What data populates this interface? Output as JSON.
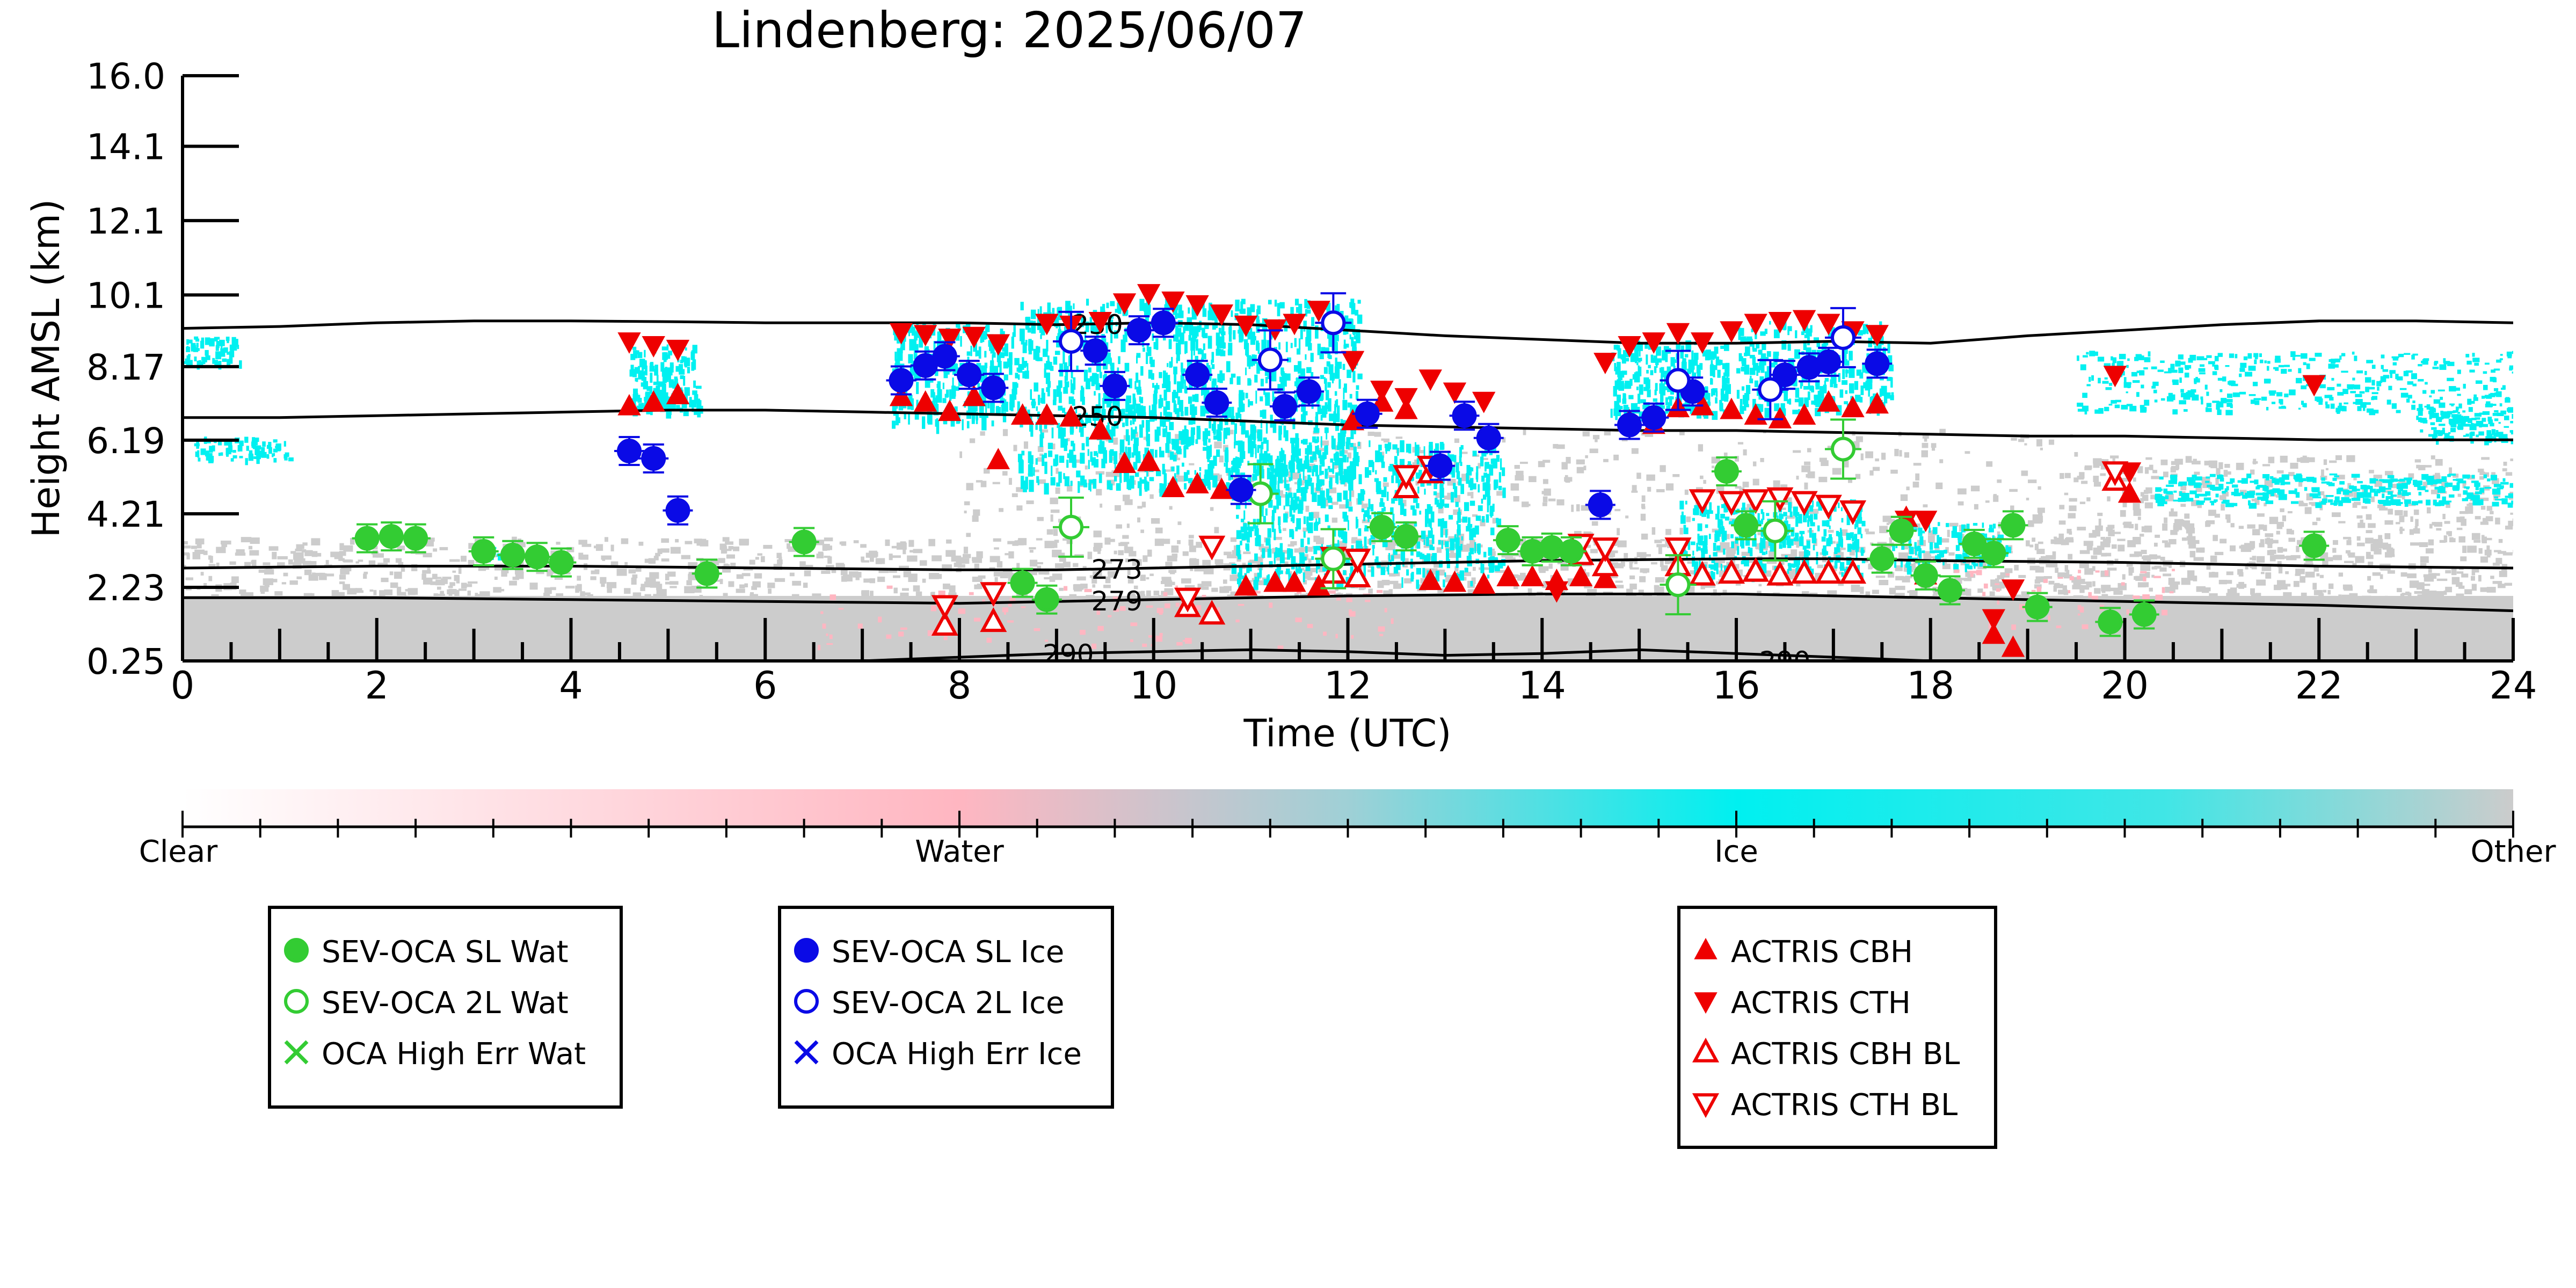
{
  "chart_data": {
    "type": "scatter",
    "title": "Lindenberg: 2025/06/07",
    "xlabel": "Time (UTC)",
    "ylabel": "Height AMSL (km)",
    "xlim": [
      0,
      24
    ],
    "ylim": [
      0.25,
      16.0
    ],
    "xticks": [
      "0",
      "2",
      "4",
      "6",
      "8",
      "10",
      "12",
      "14",
      "16",
      "18",
      "20",
      "22",
      "24"
    ],
    "yticks": [
      "0.25",
      "2.23",
      "4.21",
      "6.19",
      "8.17",
      "10.1",
      "12.1",
      "14.1",
      "16.0"
    ],
    "grid": false,
    "background": "cloud-type mask (Clear / Water / Ice / Other)",
    "colorbar": {
      "labels": [
        "Clear",
        "Water",
        "Ice",
        "Other"
      ],
      "colors": [
        "#ffffff",
        "#ffb6c1",
        "#00f0f0",
        "#cccccc"
      ]
    },
    "contours": [
      {
        "label": "230",
        "x": [
          0,
          1,
          2,
          3,
          4,
          5,
          6,
          7,
          8,
          9,
          10,
          11,
          12,
          13,
          14,
          15,
          16,
          17,
          18,
          19,
          20,
          21,
          22,
          23,
          24
        ],
        "y": [
          9.2,
          9.25,
          9.35,
          9.4,
          9.4,
          9.38,
          9.35,
          9.35,
          9.35,
          9.3,
          9.35,
          9.3,
          9.15,
          9.0,
          8.9,
          8.8,
          8.8,
          8.85,
          8.8,
          9.0,
          9.15,
          9.3,
          9.4,
          9.4,
          9.35
        ]
      },
      {
        "label": "250",
        "x": [
          0,
          1,
          2,
          3,
          4,
          5,
          6,
          7,
          8,
          9,
          10,
          11,
          12,
          13,
          14,
          15,
          16,
          17,
          18,
          19,
          20,
          21,
          22,
          23,
          24
        ],
        "y": [
          6.8,
          6.8,
          6.85,
          6.9,
          6.95,
          7.0,
          7.0,
          6.95,
          6.9,
          6.85,
          6.8,
          6.7,
          6.6,
          6.55,
          6.5,
          6.45,
          6.45,
          6.4,
          6.35,
          6.3,
          6.3,
          6.25,
          6.2,
          6.2,
          6.2
        ]
      },
      {
        "label": "273",
        "x": [
          0,
          2,
          4,
          6,
          8,
          9,
          10,
          12,
          14,
          16,
          17,
          18,
          20,
          22,
          24
        ],
        "y": [
          2.75,
          2.8,
          2.8,
          2.75,
          2.7,
          2.7,
          2.75,
          2.85,
          2.95,
          3.0,
          3.0,
          2.95,
          2.9,
          2.8,
          2.75
        ]
      },
      {
        "label": "279",
        "x": [
          0,
          2,
          4,
          6,
          8,
          9,
          10,
          12,
          14,
          16,
          17,
          18,
          20,
          22,
          24
        ],
        "y": [
          1.95,
          1.95,
          1.9,
          1.85,
          1.8,
          1.85,
          1.9,
          2.0,
          2.05,
          2.05,
          2.0,
          1.95,
          1.85,
          1.75,
          1.6
        ]
      },
      {
        "label": "290",
        "x": [
          7,
          8,
          9,
          10,
          11,
          12,
          13,
          14,
          15,
          16,
          17,
          18
        ],
        "y": [
          0.25,
          0.35,
          0.45,
          0.5,
          0.55,
          0.5,
          0.4,
          0.45,
          0.55,
          0.45,
          0.35,
          0.25
        ]
      }
    ],
    "series": [
      {
        "name": "SEV-OCA SL Wat",
        "marker": "filled-circle",
        "color": "#33cc33",
        "x": [
          1.9,
          2.15,
          2.4,
          3.1,
          3.4,
          3.65,
          3.9,
          5.4,
          6.4,
          8.65,
          8.9,
          12.35,
          12.6,
          13.65,
          13.9,
          14.1,
          14.3,
          15.9,
          16.1,
          17.5,
          17.7,
          17.95,
          18.2,
          18.45,
          18.65,
          18.85,
          19.1,
          19.85,
          20.2,
          21.95
        ],
        "y": [
          3.55,
          3.6,
          3.55,
          3.2,
          3.1,
          3.05,
          2.9,
          2.6,
          3.45,
          2.35,
          1.9,
          3.85,
          3.6,
          3.5,
          3.2,
          3.3,
          3.2,
          5.35,
          3.9,
          3.0,
          3.75,
          2.55,
          2.15,
          3.4,
          3.15,
          3.9,
          1.7,
          1.3,
          1.5,
          3.35
        ]
      },
      {
        "name": "SEV-OCA 2L Wat",
        "marker": "open-circle",
        "color": "#33cc33",
        "x": [
          9.15,
          11.1,
          11.85,
          15.4,
          16.4,
          17.1
        ],
        "y": [
          3.85,
          4.75,
          3.0,
          2.3,
          3.75,
          5.95
        ]
      },
      {
        "name": "OCA High Err Wat",
        "marker": "x",
        "color": "#33cc33",
        "x": [],
        "y": []
      },
      {
        "name": "SEV-OCA SL Ice",
        "marker": "filled-circle",
        "color": "#0a0ae6",
        "x": [
          4.6,
          4.85,
          5.1,
          7.4,
          7.65,
          7.85,
          8.1,
          8.35,
          9.4,
          9.6,
          9.85,
          10.1,
          10.45,
          10.65,
          10.9,
          11.35,
          11.6,
          12.2,
          12.95,
          13.2,
          13.45,
          14.6,
          14.9,
          15.15,
          15.55,
          16.5,
          16.75,
          16.95,
          17.45
        ],
        "y": [
          5.9,
          5.7,
          4.3,
          7.8,
          8.2,
          8.45,
          7.95,
          7.6,
          8.6,
          7.65,
          9.15,
          9.35,
          7.95,
          7.2,
          4.85,
          7.1,
          7.5,
          6.9,
          5.5,
          6.85,
          6.25,
          4.45,
          6.6,
          6.8,
          7.5,
          7.95,
          8.15,
          8.3,
          8.25
        ]
      },
      {
        "name": "SEV-OCA 2L Ice",
        "marker": "open-circle",
        "color": "#0a0ae6",
        "x": [
          9.15,
          11.2,
          11.85,
          15.4,
          16.35,
          17.1
        ],
        "y": [
          8.85,
          8.35,
          9.35,
          7.8,
          7.55,
          8.95
        ]
      },
      {
        "name": "OCA High Err Ice",
        "marker": "x",
        "color": "#0a0ae6",
        "x": [],
        "y": []
      },
      {
        "name": "ACTRIS CBH",
        "marker": "filled-triangle-up",
        "color": "#ee0000",
        "x": [
          4.6,
          4.85,
          5.1,
          7.4,
          7.65,
          7.9,
          8.15,
          8.4,
          8.65,
          8.9,
          9.15,
          9.45,
          9.7,
          9.95,
          10.2,
          10.45,
          10.7,
          10.95,
          11.25,
          11.45,
          11.7,
          12.05,
          12.35,
          12.6,
          12.85,
          13.1,
          13.4,
          13.65,
          13.9,
          14.15,
          14.4,
          14.65,
          14.9,
          15.15,
          15.4,
          15.65,
          15.95,
          16.2,
          16.45,
          16.7,
          16.95,
          17.2,
          17.45,
          17.75,
          17.95,
          18.65,
          18.85,
          20.05
        ],
        "y": [
          7.1,
          7.2,
          7.4,
          7.35,
          7.2,
          6.95,
          7.35,
          5.65,
          6.85,
          6.85,
          6.8,
          6.45,
          5.55,
          5.6,
          4.9,
          5.0,
          4.85,
          2.25,
          2.35,
          2.35,
          2.25,
          6.7,
          7.2,
          7.0,
          2.4,
          2.35,
          2.3,
          2.5,
          2.5,
          2.4,
          2.5,
          2.45,
          6.7,
          6.6,
          7.05,
          7.1,
          7.0,
          6.85,
          6.75,
          6.85,
          7.2,
          7.05,
          7.15,
          4.1,
          2.55,
          0.95,
          0.6,
          4.75
        ]
      },
      {
        "name": "ACTRIS CTH",
        "marker": "filled-triangle-down",
        "color": "#ee0000",
        "x": [
          4.6,
          4.85,
          5.1,
          7.4,
          7.65,
          7.9,
          8.15,
          8.4,
          8.9,
          9.15,
          9.45,
          9.7,
          9.95,
          10.2,
          10.45,
          10.7,
          10.95,
          11.25,
          11.45,
          11.7,
          12.05,
          12.35,
          12.6,
          12.85,
          13.1,
          13.4,
          14.15,
          14.65,
          14.9,
          15.15,
          15.4,
          15.65,
          15.95,
          16.2,
          16.45,
          16.7,
          16.95,
          17.2,
          17.45,
          17.75,
          17.95,
          18.65,
          18.85,
          19.9,
          20.05,
          21.95
        ],
        "y": [
          8.85,
          8.75,
          8.65,
          9.1,
          9.05,
          8.95,
          9.0,
          8.8,
          9.35,
          9.3,
          9.4,
          9.9,
          10.15,
          9.95,
          9.85,
          9.6,
          9.3,
          9.2,
          9.35,
          9.7,
          8.35,
          7.55,
          7.35,
          7.85,
          7.5,
          7.25,
          2.15,
          8.3,
          8.75,
          8.85,
          9.1,
          8.85,
          9.15,
          9.35,
          9.4,
          9.45,
          9.35,
          9.15,
          9.05,
          4.05,
          4.05,
          1.4,
          2.2,
          7.95,
          5.35,
          7.7
        ]
      },
      {
        "name": "ACTRIS CBH BL",
        "marker": "open-triangle-up",
        "color": "#ee0000",
        "x": [
          7.85,
          8.35,
          10.35,
          10.6,
          11.85,
          12.1,
          12.6,
          12.85,
          14.4,
          14.65,
          15.4,
          15.65,
          15.95,
          16.2,
          16.45,
          16.7,
          16.95,
          17.2,
          19.9
        ],
        "y": [
          1.2,
          1.3,
          1.7,
          1.5,
          2.6,
          2.5,
          4.9,
          5.3,
          3.1,
          2.8,
          2.8,
          2.55,
          2.6,
          2.65,
          2.55,
          2.6,
          2.6,
          2.6,
          5.1
        ]
      },
      {
        "name": "ACTRIS CTH BL",
        "marker": "open-triangle-down",
        "color": "#ee0000",
        "x": [
          7.85,
          8.35,
          10.35,
          10.6,
          11.85,
          12.1,
          12.6,
          12.85,
          14.4,
          14.65,
          15.4,
          15.65,
          15.95,
          16.2,
          16.45,
          16.7,
          16.95,
          17.2,
          19.9
        ],
        "y": [
          1.75,
          2.1,
          1.95,
          3.35,
          3.05,
          3.0,
          5.25,
          5.5,
          3.4,
          3.3,
          3.3,
          4.6,
          4.55,
          4.6,
          4.65,
          4.55,
          4.45,
          4.3,
          5.35
        ]
      }
    ]
  },
  "legends": [
    {
      "items": [
        {
          "label": "SEV-OCA SL Wat",
          "marker": "filled-circle",
          "color": "#33cc33"
        },
        {
          "label": "SEV-OCA 2L Wat",
          "marker": "open-circle",
          "color": "#33cc33"
        },
        {
          "label": "OCA High Err Wat",
          "marker": "x",
          "color": "#33cc33"
        }
      ]
    },
    {
      "items": [
        {
          "label": "SEV-OCA SL Ice",
          "marker": "filled-circle",
          "color": "#0a0ae6"
        },
        {
          "label": "SEV-OCA 2L Ice",
          "marker": "open-circle",
          "color": "#0a0ae6"
        },
        {
          "label": "OCA High Err Ice",
          "marker": "x",
          "color": "#0a0ae6"
        }
      ]
    },
    {
      "items": [
        {
          "label": "ACTRIS CBH",
          "marker": "filled-triangle-up",
          "color": "#ee0000"
        },
        {
          "label": "ACTRIS CTH",
          "marker": "filled-triangle-down",
          "color": "#ee0000"
        },
        {
          "label": "ACTRIS CBH BL",
          "marker": "open-triangle-up",
          "color": "#ee0000"
        },
        {
          "label": "ACTRIS CTH BL",
          "marker": "open-triangle-down",
          "color": "#ee0000"
        }
      ]
    }
  ]
}
